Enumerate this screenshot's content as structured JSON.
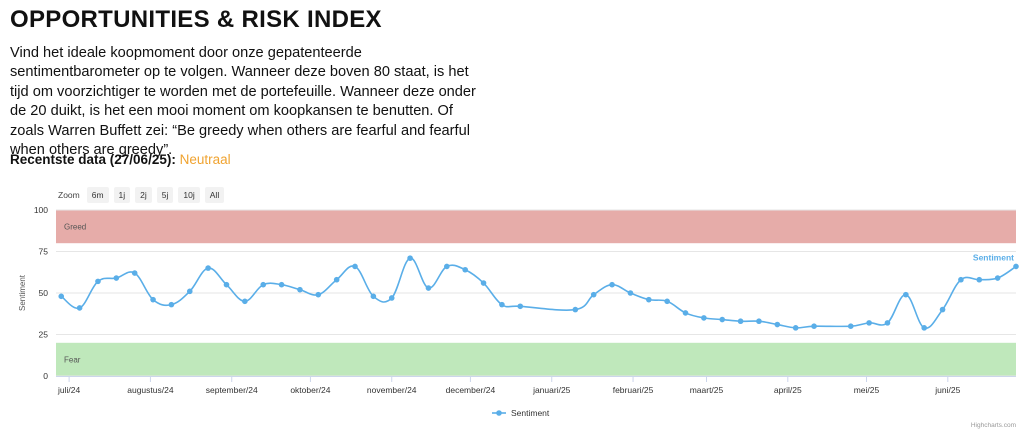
{
  "page": {
    "title": "OPPORTUNITIES & RISK INDEX",
    "intro": "Vind het ideale koopmoment door onze gepatenteerde sentimentbarometer op te volgen. Wanneer deze boven 80 staat, is het tijd om voorzichtiger te worden met de portefeuille. Wanneer deze onder de 20 duikt, is het een mooi moment om koopkansen te benutten. Of zoals Warren Buffett zei: “Be greedy when others are fearful and fearful when others are greedy”.",
    "recent_label": "Recentste data (27/06/25):",
    "recent_value": "Neutraal",
    "credit": "Highcharts.com"
  },
  "zoom": {
    "label": "Zoom",
    "buttons": [
      "6m",
      "1j",
      "2j",
      "5j",
      "10j",
      "All"
    ]
  },
  "colors": {
    "series": "#5aaee8",
    "greed_band": "#e6aca9",
    "fear_band": "#bfe8bb",
    "accent": "#f0a330"
  },
  "chart_data": {
    "type": "line",
    "title": "",
    "xlabel": "",
    "ylabel": "Sentiment",
    "ylim": [
      0,
      100
    ],
    "yticks": [
      0,
      25,
      50,
      75,
      100
    ],
    "xlim": [
      "2024-06-26",
      "2025-06-27"
    ],
    "x_ticks": [
      {
        "date": "2024-07-01",
        "label": "juli/24"
      },
      {
        "date": "2024-08-01",
        "label": "augustus/24"
      },
      {
        "date": "2024-09-01",
        "label": "september/24"
      },
      {
        "date": "2024-10-01",
        "label": "oktober/24"
      },
      {
        "date": "2024-11-01",
        "label": "november/24"
      },
      {
        "date": "2024-12-01",
        "label": "december/24"
      },
      {
        "date": "2025-01-01",
        "label": "januari/25"
      },
      {
        "date": "2025-02-01",
        "label": "februari/25"
      },
      {
        "date": "2025-03-01",
        "label": "maart/25"
      },
      {
        "date": "2025-04-01",
        "label": "april/25"
      },
      {
        "date": "2025-05-01",
        "label": "mei/25"
      },
      {
        "date": "2025-06-01",
        "label": "juni/25"
      }
    ],
    "bands": [
      {
        "from": 80,
        "to": 100,
        "label": "Greed"
      },
      {
        "from": 0,
        "to": 20,
        "label": "Fear"
      }
    ],
    "grid": true,
    "legend_position": "bottom-center",
    "series": [
      {
        "name": "Sentiment",
        "points": [
          {
            "x": "2024-06-28",
            "y": 48
          },
          {
            "x": "2024-07-05",
            "y": 41
          },
          {
            "x": "2024-07-12",
            "y": 57
          },
          {
            "x": "2024-07-19",
            "y": 59
          },
          {
            "x": "2024-07-26",
            "y": 62
          },
          {
            "x": "2024-08-02",
            "y": 46
          },
          {
            "x": "2024-08-09",
            "y": 43
          },
          {
            "x": "2024-08-16",
            "y": 51
          },
          {
            "x": "2024-08-23",
            "y": 65
          },
          {
            "x": "2024-08-30",
            "y": 55
          },
          {
            "x": "2024-09-06",
            "y": 45
          },
          {
            "x": "2024-09-13",
            "y": 55
          },
          {
            "x": "2024-09-20",
            "y": 55
          },
          {
            "x": "2024-09-27",
            "y": 52
          },
          {
            "x": "2024-10-04",
            "y": 49
          },
          {
            "x": "2024-10-11",
            "y": 58
          },
          {
            "x": "2024-10-18",
            "y": 66
          },
          {
            "x": "2024-10-25",
            "y": 48
          },
          {
            "x": "2024-11-01",
            "y": 47
          },
          {
            "x": "2024-11-08",
            "y": 71
          },
          {
            "x": "2024-11-15",
            "y": 53
          },
          {
            "x": "2024-11-22",
            "y": 66
          },
          {
            "x": "2024-11-29",
            "y": 64
          },
          {
            "x": "2024-12-06",
            "y": 56
          },
          {
            "x": "2024-12-13",
            "y": 43
          },
          {
            "x": "2024-12-20",
            "y": 42
          },
          {
            "x": "2025-01-10",
            "y": 40
          },
          {
            "x": "2025-01-17",
            "y": 49
          },
          {
            "x": "2025-01-24",
            "y": 55
          },
          {
            "x": "2025-01-31",
            "y": 50
          },
          {
            "x": "2025-02-07",
            "y": 46
          },
          {
            "x": "2025-02-14",
            "y": 45
          },
          {
            "x": "2025-02-21",
            "y": 38
          },
          {
            "x": "2025-02-28",
            "y": 35
          },
          {
            "x": "2025-03-07",
            "y": 34
          },
          {
            "x": "2025-03-14",
            "y": 33
          },
          {
            "x": "2025-03-21",
            "y": 33
          },
          {
            "x": "2025-03-28",
            "y": 31
          },
          {
            "x": "2025-04-04",
            "y": 29
          },
          {
            "x": "2025-04-11",
            "y": 30
          },
          {
            "x": "2025-04-25",
            "y": 30
          },
          {
            "x": "2025-05-02",
            "y": 32
          },
          {
            "x": "2025-05-09",
            "y": 32
          },
          {
            "x": "2025-05-16",
            "y": 49
          },
          {
            "x": "2025-05-23",
            "y": 29
          },
          {
            "x": "2025-05-30",
            "y": 40
          },
          {
            "x": "2025-06-06",
            "y": 58
          },
          {
            "x": "2025-06-13",
            "y": 58
          },
          {
            "x": "2025-06-20",
            "y": 59
          },
          {
            "x": "2025-06-27",
            "y": 66
          }
        ]
      }
    ]
  }
}
